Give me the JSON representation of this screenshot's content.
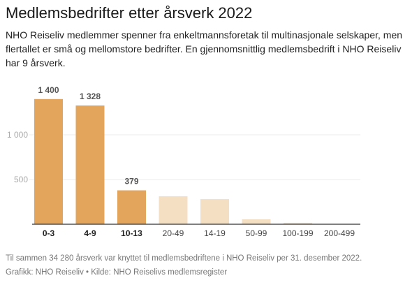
{
  "title": "Medlemsbedrifter etter årsverk 2022",
  "subtitle": "NHO Reiseliv medlemmer spenner fra enkeltmannsforetak til multinasjonale selskaper, men flertallet er små og mellomstore bedrifter.  En gjennomsnittlig medlemsbedrift i NHO Reiseliv har 9 årsverk.",
  "note": "Til sammen 34 280  årsverk var knyttet til medlemsbedriftene i NHO Reiseliv per 31. desember 2022.",
  "credit": "Grafikk: NHO Reiseliv • Kilde: NHO Reiselivs medlemsregister",
  "chart_data": {
    "type": "bar",
    "title": "Medlemsbedrifter etter årsverk 2022",
    "xlabel": "",
    "ylabel": "",
    "categories": [
      "0-3",
      "4-9",
      "10-13",
      "20-49",
      "14-19",
      "50-99",
      "100-199",
      "200-499"
    ],
    "values": [
      1400,
      1328,
      379,
      313,
      281,
      55,
      16,
      3
    ],
    "highlighted": [
      true,
      true,
      true,
      false,
      false,
      false,
      false,
      false
    ],
    "data_labels": [
      "1 400",
      "1 328",
      "379",
      "",
      "",
      "",
      "",
      ""
    ],
    "yticks": [
      500,
      1000
    ],
    "ytick_labels": [
      "500",
      "1 000"
    ],
    "ylim": [
      0,
      1400
    ],
    "grid": true,
    "colors": {
      "highlight": "#e3a55c",
      "muted": "#f5dfc2",
      "grid": "#ebebeb",
      "axis": "#333333"
    }
  }
}
